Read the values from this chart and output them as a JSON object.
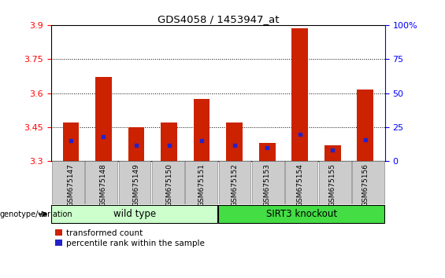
{
  "title": "GDS4058 / 1453947_at",
  "samples": [
    "GSM675147",
    "GSM675148",
    "GSM675149",
    "GSM675150",
    "GSM675151",
    "GSM675152",
    "GSM675153",
    "GSM675154",
    "GSM675155",
    "GSM675156"
  ],
  "transformed_count": [
    3.47,
    3.67,
    3.45,
    3.47,
    3.575,
    3.47,
    3.38,
    3.885,
    3.37,
    3.615
  ],
  "percentile_rank": [
    15,
    18,
    12,
    12,
    15,
    12,
    10,
    20,
    8,
    16
  ],
  "ymin": 3.3,
  "ymax": 3.9,
  "yticks": [
    3.3,
    3.45,
    3.6,
    3.75,
    3.9
  ],
  "right_yticks": [
    0,
    25,
    50,
    75,
    100
  ],
  "bar_color": "#cc2200",
  "percentile_color": "#2222cc",
  "grid_color": "#000000",
  "wild_type_color": "#ccffcc",
  "sirt3_color": "#44dd44",
  "legend_items": [
    {
      "label": "transformed count",
      "color": "#cc2200"
    },
    {
      "label": "percentile rank within the sample",
      "color": "#2222cc"
    }
  ],
  "xlabel_left": "genotype/variation",
  "bar_bottom": 3.3,
  "bar_width": 0.5
}
